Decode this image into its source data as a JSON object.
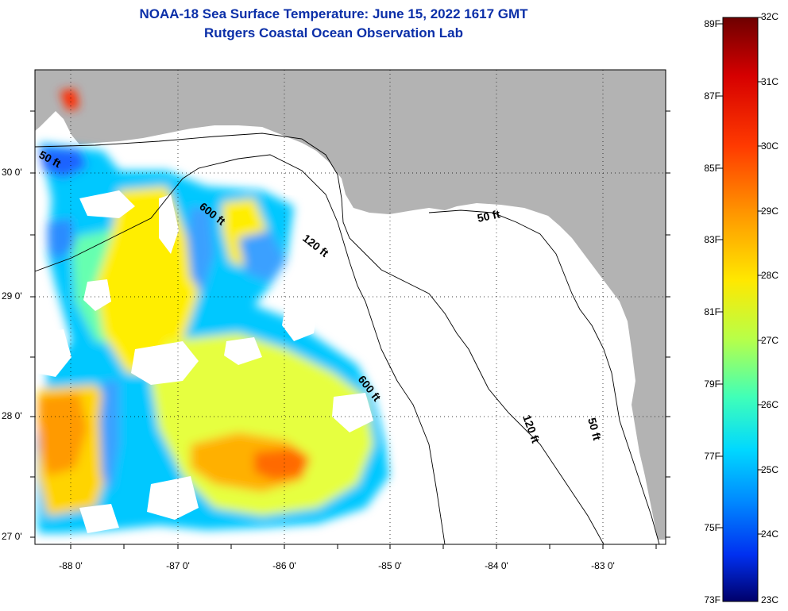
{
  "title_line1": "NOAA-18 Sea Surface Temperature:  June 15, 2022 1617 GMT",
  "title_line2": "Rutgers Coastal Ocean Observation Lab",
  "lat_labels": [
    "30 0'",
    "29 0'",
    "28 0'",
    "27 0'"
  ],
  "lon_labels": [
    "-88 0'",
    "-87 0'",
    "-86 0'",
    "-85 0'",
    "-84 0'",
    "-83 0'"
  ],
  "depth_labels": [
    "50 ft",
    "600 ft",
    "120 ft",
    "50 ft",
    "600 ft",
    "120 ft",
    "50 ft"
  ],
  "colorbar": {
    "f_labels": [
      "89F",
      "87F",
      "85F",
      "83F",
      "81F",
      "79F",
      "77F",
      "75F",
      "73F"
    ],
    "c_labels": [
      "32C",
      "31C",
      "30C",
      "29C",
      "28C",
      "27C",
      "26C",
      "25C",
      "24C",
      "23C"
    ],
    "colors": [
      "#7a0000",
      "#d40000",
      "#ff4a00",
      "#ff9a00",
      "#ffe000",
      "#c8ff3c",
      "#5cffa0",
      "#00e0ff",
      "#0094ff",
      "#0040ff",
      "#0000b4",
      "#00006e"
    ]
  },
  "colors": {
    "land": "#b3b3b3",
    "water_nodata": "#ffffff",
    "title": "#0b2fa8"
  }
}
